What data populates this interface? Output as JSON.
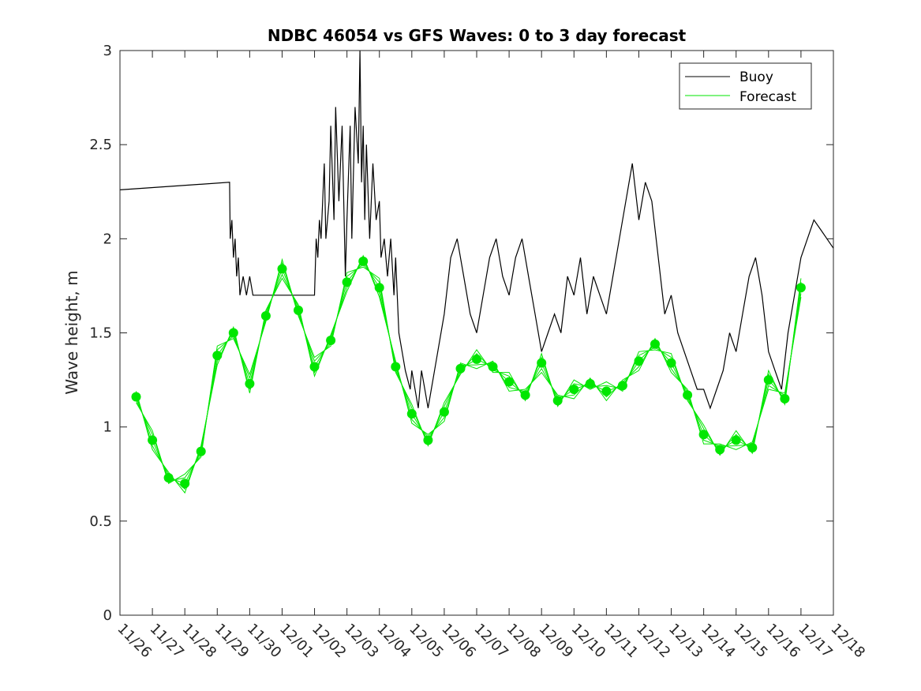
{
  "chart_data": {
    "type": "line",
    "title": "NDBC 46054 vs GFS Waves: 0 to 3 day forecast",
    "xlabel": "",
    "ylabel": "Wave height, m",
    "ylim": [
      0,
      3
    ],
    "yticks": [
      0,
      0.5,
      1,
      1.5,
      2,
      2.5,
      3
    ],
    "ytick_labels": [
      "0",
      "0.5",
      "1",
      "1.5",
      "2",
      "2.5",
      "3"
    ],
    "xlim": [
      0,
      22
    ],
    "x_unit": "days since 11/26",
    "xtick_labels": [
      "11/26",
      "11/27",
      "11/28",
      "11/29",
      "11/30",
      "12/01",
      "12/02",
      "12/03",
      "12/04",
      "12/05",
      "12/06",
      "12/07",
      "12/08",
      "12/09",
      "12/10",
      "12/11",
      "12/12",
      "12/13",
      "12/14",
      "12/15",
      "12/16",
      "12/17",
      "12/18"
    ],
    "grid": false,
    "legend": {
      "location": "top-right",
      "entries": [
        "Buoy",
        "Forecast"
      ]
    },
    "colors": {
      "buoy": "#000000",
      "forecast": "#00e600",
      "axes": "#262626"
    },
    "series": [
      {
        "name": "Buoy",
        "style": "line",
        "x": [
          0,
          3.38,
          3.4,
          3.45,
          3.5,
          3.55,
          3.6,
          3.65,
          3.7,
          3.8,
          3.9,
          4.0,
          4.1,
          4.5,
          5.0,
          5.5,
          6.0,
          6.05,
          6.1,
          6.15,
          6.2,
          6.3,
          6.35,
          6.45,
          6.5,
          6.6,
          6.65,
          6.75,
          6.85,
          6.95,
          7.0,
          7.1,
          7.15,
          7.25,
          7.35,
          7.4,
          7.45,
          7.5,
          7.55,
          7.6,
          7.7,
          7.8,
          7.9,
          8.0,
          8.05,
          8.15,
          8.25,
          8.35,
          8.45,
          8.5,
          8.6,
          8.7,
          8.8,
          8.95,
          9.0,
          9.1,
          9.2,
          9.3,
          9.4,
          9.5,
          9.6,
          9.7,
          9.8,
          9.9,
          10.0,
          10.2,
          10.4,
          10.6,
          10.8,
          11.0,
          11.2,
          11.4,
          11.6,
          11.8,
          12.0,
          12.2,
          12.4,
          12.6,
          12.8,
          13.0,
          13.2,
          13.4,
          13.6,
          13.8,
          14.0,
          14.2,
          14.4,
          14.6,
          14.8,
          15.0,
          15.2,
          15.4,
          15.6,
          15.8,
          16.0,
          16.2,
          16.4,
          16.6,
          16.8,
          17.0,
          17.2,
          17.4,
          17.6,
          17.8,
          18.0,
          18.2,
          18.4,
          18.6,
          18.8,
          19.0,
          19.2,
          19.4,
          19.6,
          19.8,
          20.0,
          20.2,
          20.4,
          20.6,
          20.8,
          21.0,
          21.2,
          21.4,
          21.6,
          21.8,
          22.0
        ],
        "values": [
          2.26,
          2.3,
          2.0,
          2.1,
          1.9,
          2.0,
          1.8,
          1.9,
          1.7,
          1.8,
          1.7,
          1.8,
          1.7,
          1.7,
          1.7,
          1.7,
          1.7,
          2.0,
          1.9,
          2.1,
          2.0,
          2.4,
          2.0,
          2.2,
          2.6,
          2.1,
          2.7,
          2.2,
          2.6,
          1.8,
          2.1,
          2.6,
          2.0,
          2.7,
          2.4,
          3.0,
          2.3,
          2.6,
          2.1,
          2.5,
          2.0,
          2.4,
          2.1,
          2.2,
          1.9,
          2.0,
          1.8,
          2.0,
          1.7,
          1.9,
          1.5,
          1.4,
          1.3,
          1.2,
          1.3,
          1.2,
          1.1,
          1.3,
          1.2,
          1.1,
          1.2,
          1.3,
          1.4,
          1.5,
          1.6,
          1.9,
          2.0,
          1.8,
          1.6,
          1.5,
          1.7,
          1.9,
          2.0,
          1.8,
          1.7,
          1.9,
          2.0,
          1.8,
          1.6,
          1.4,
          1.5,
          1.6,
          1.5,
          1.8,
          1.7,
          1.9,
          1.6,
          1.8,
          1.7,
          1.6,
          1.8,
          2.0,
          2.2,
          2.4,
          2.1,
          2.3,
          2.2,
          1.9,
          1.6,
          1.7,
          1.5,
          1.4,
          1.3,
          1.2,
          1.2,
          1.1,
          1.2,
          1.3,
          1.5,
          1.4,
          1.6,
          1.8,
          1.9,
          1.7,
          1.4,
          1.3,
          1.2,
          1.5,
          1.7,
          1.9,
          2.0,
          2.1,
          2.05,
          2.0,
          1.95
        ]
      },
      {
        "name": "Forecast",
        "style": "markers",
        "x": [
          0.5,
          1.0,
          1.5,
          2.0,
          2.5,
          3.0,
          3.5,
          4.0,
          4.5,
          5.0,
          5.5,
          6.0,
          6.5,
          7.0,
          7.5,
          8.0,
          8.5,
          9.0,
          9.5,
          10.0,
          10.5,
          11.0,
          11.5,
          12.0,
          12.5,
          13.0,
          13.5,
          14.0,
          14.5,
          15.0,
          15.5,
          16.0,
          16.5,
          17.0,
          17.5,
          18.0,
          18.5,
          19.0,
          19.5,
          20.0,
          20.5,
          21.0
        ],
        "values": [
          1.16,
          0.93,
          0.73,
          0.7,
          0.87,
          1.38,
          1.5,
          1.23,
          1.59,
          1.84,
          1.62,
          1.32,
          1.46,
          1.77,
          1.88,
          1.74,
          1.32,
          1.07,
          0.93,
          1.08,
          1.31,
          1.36,
          1.32,
          1.24,
          1.17,
          1.34,
          1.14,
          1.2,
          1.23,
          1.19,
          1.22,
          1.35,
          1.44,
          1.34,
          1.17,
          0.96,
          0.88,
          0.93,
          0.89,
          1.25,
          1.15,
          1.74
        ]
      }
    ]
  }
}
